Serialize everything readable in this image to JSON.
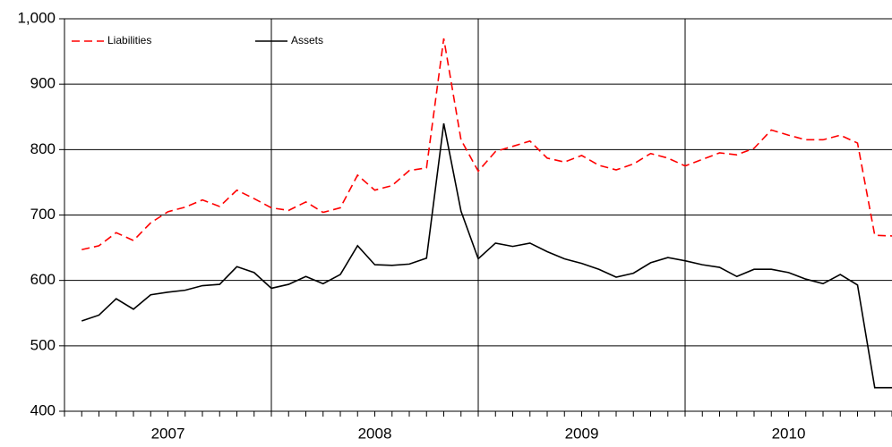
{
  "chart_data": {
    "type": "line",
    "categories": [
      null,
      null,
      null,
      null,
      null,
      null,
      null,
      null,
      null,
      null,
      null,
      null,
      null,
      null,
      null,
      null,
      null,
      null,
      null,
      null,
      null,
      null,
      null,
      null,
      null,
      null,
      null,
      null,
      null,
      null,
      null,
      null,
      null,
      null,
      null,
      null,
      null,
      null,
      null,
      null,
      null,
      null,
      null,
      null,
      null,
      null,
      null,
      null
    ],
    "x_group_labels": [
      "2007",
      "2008",
      "2009",
      "2010"
    ],
    "series": [
      {
        "name": "Liabilities",
        "color": "#ff0000",
        "style": "dashed",
        "values": [
          647,
          653,
          673,
          661,
          688,
          705,
          712,
          723,
          713,
          738,
          725,
          711,
          707,
          720,
          704,
          711,
          761,
          738,
          745,
          768,
          772,
          970,
          815,
          767,
          797,
          805,
          813,
          787,
          781,
          791,
          776,
          769,
          778,
          794,
          787,
          775,
          785,
          795,
          792,
          802,
          830,
          822,
          815,
          815,
          822,
          810,
          669,
          668
        ]
      },
      {
        "name": "Assets",
        "color": "#000000",
        "style": "solid",
        "values": [
          538,
          547,
          572,
          556,
          578,
          582,
          585,
          592,
          594,
          621,
          612,
          588,
          594,
          606,
          595,
          609,
          653,
          624,
          623,
          625,
          634,
          840,
          706,
          633,
          657,
          652,
          657,
          644,
          633,
          626,
          617,
          605,
          611,
          627,
          635,
          630,
          624,
          620,
          606,
          617,
          617,
          612,
          602,
          595,
          609,
          593,
          436,
          436
        ]
      }
    ],
    "ylim": [
      400,
      1000
    ],
    "yticks": [
      400,
      500,
      600,
      700,
      800,
      900,
      {
        "value": 1000,
        "label": "1,000"
      }
    ],
    "grid": true,
    "legend": "top-left"
  }
}
